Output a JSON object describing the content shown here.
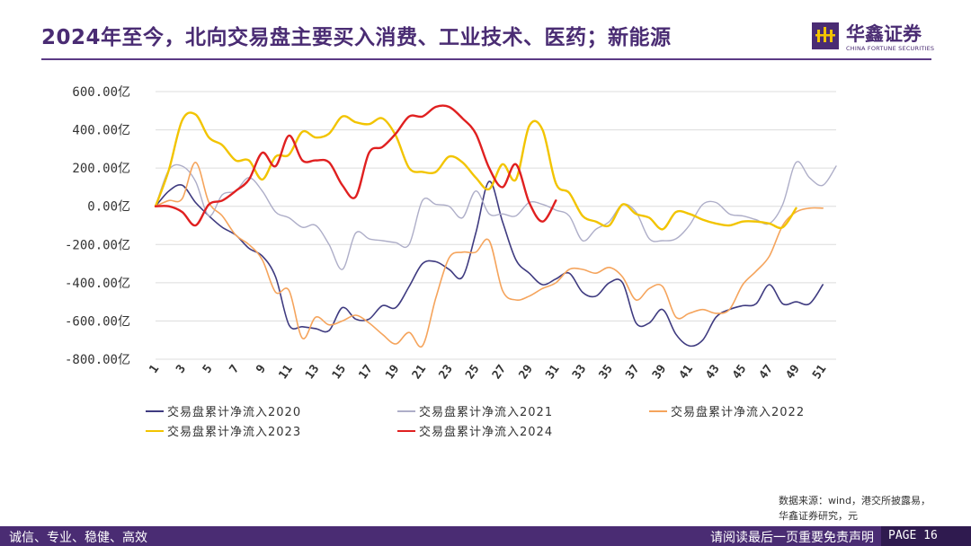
{
  "header": {
    "title": "2024年至今，北向交易盘主要买入消费、工业技术、医药；新能源",
    "brand_cn": "华鑫证券",
    "brand_en": "CHINA FORTUNE SECURITIES",
    "brand_color": "#4a2c73"
  },
  "source": {
    "line1": "数据来源：wind，港交所披露易，",
    "line2": "华鑫证券研究，元"
  },
  "footer": {
    "slogan": "诚信、专业、稳健、高效",
    "disclaimer": "请阅读最后一页重要免责声明",
    "page": "PAGE 16"
  },
  "chart_data": {
    "type": "line",
    "title": "",
    "xlabel": "",
    "ylabel": "",
    "ylim": [
      -800,
      600
    ],
    "y_ticks": [
      600,
      400,
      200,
      0,
      -200,
      -400,
      -600,
      -800
    ],
    "y_tick_labels": [
      "600.00亿",
      "400.00亿",
      "200.00亿",
      "0.00亿",
      "-200.00亿",
      "-400.00亿",
      "-600.00亿",
      "-800.00亿"
    ],
    "x_ticks": [
      1,
      3,
      5,
      7,
      9,
      11,
      13,
      15,
      17,
      19,
      21,
      23,
      25,
      27,
      29,
      31,
      33,
      35,
      37,
      39,
      41,
      43,
      45,
      47,
      49,
      51
    ],
    "grid": true,
    "legend_position": "bottom",
    "series": [
      {
        "name": "交易盘累计净流入2020",
        "color": "#3f3b80",
        "values": [
          0,
          80,
          110,
          20,
          -50,
          -110,
          -150,
          -220,
          -260,
          -370,
          -620,
          -630,
          -640,
          -650,
          -530,
          -590,
          -590,
          -520,
          -530,
          -420,
          -300,
          -290,
          -330,
          -370,
          -140,
          130,
          -80,
          -280,
          -350,
          -410,
          -380,
          -350,
          -450,
          -470,
          -400,
          -400,
          -610,
          -610,
          -540,
          -670,
          -730,
          -700,
          -580,
          -540,
          -520,
          -510,
          -410,
          -510,
          -500,
          -510,
          -410
        ]
      },
      {
        "name": "交易盘累计净流入2021",
        "color": "#aeaec8",
        "values": [
          0,
          190,
          210,
          130,
          -50,
          60,
          80,
          150,
          80,
          -30,
          -60,
          -110,
          -100,
          -200,
          -330,
          -140,
          -170,
          -180,
          -190,
          -200,
          30,
          10,
          0,
          -60,
          80,
          -40,
          -40,
          -50,
          20,
          10,
          -20,
          -50,
          -180,
          -120,
          -80,
          10,
          -30,
          -170,
          -180,
          -170,
          -100,
          10,
          20,
          -40,
          -50,
          -70,
          -90,
          10,
          230,
          150,
          110,
          210
        ]
      },
      {
        "name": "交易盘累计净流入2022",
        "color": "#f5a45c",
        "values": [
          0,
          30,
          40,
          230,
          20,
          -50,
          -150,
          -200,
          -280,
          -450,
          -440,
          -690,
          -580,
          -620,
          -600,
          -570,
          -610,
          -670,
          -720,
          -660,
          -730,
          -480,
          -270,
          -240,
          -240,
          -180,
          -440,
          -490,
          -470,
          -430,
          -400,
          -330,
          -330,
          -350,
          -320,
          -370,
          -490,
          -430,
          -420,
          -580,
          -560,
          -540,
          -560,
          -540,
          -410,
          -340,
          -260,
          -100,
          -30,
          -10,
          -10
        ]
      },
      {
        "name": "交易盘累计净流入2023",
        "color": "#f2c400",
        "values": [
          0,
          190,
          450,
          480,
          360,
          320,
          240,
          240,
          140,
          260,
          270,
          390,
          360,
          380,
          470,
          440,
          430,
          460,
          370,
          200,
          180,
          180,
          260,
          230,
          150,
          90,
          220,
          140,
          420,
          400,
          120,
          70,
          -50,
          -80,
          -100,
          10,
          -40,
          -60,
          -120,
          -30,
          -40,
          -70,
          -90,
          -100,
          -80,
          -80,
          -90,
          -110,
          -10
        ]
      },
      {
        "name": "交易盘累计净流入2024",
        "color": "#e02020",
        "values": [
          0,
          0,
          -30,
          -100,
          10,
          30,
          80,
          140,
          280,
          210,
          370,
          240,
          240,
          230,
          110,
          50,
          280,
          310,
          380,
          470,
          470,
          520,
          520,
          460,
          380,
          200,
          100,
          220,
          20,
          -80,
          30
        ]
      }
    ]
  }
}
